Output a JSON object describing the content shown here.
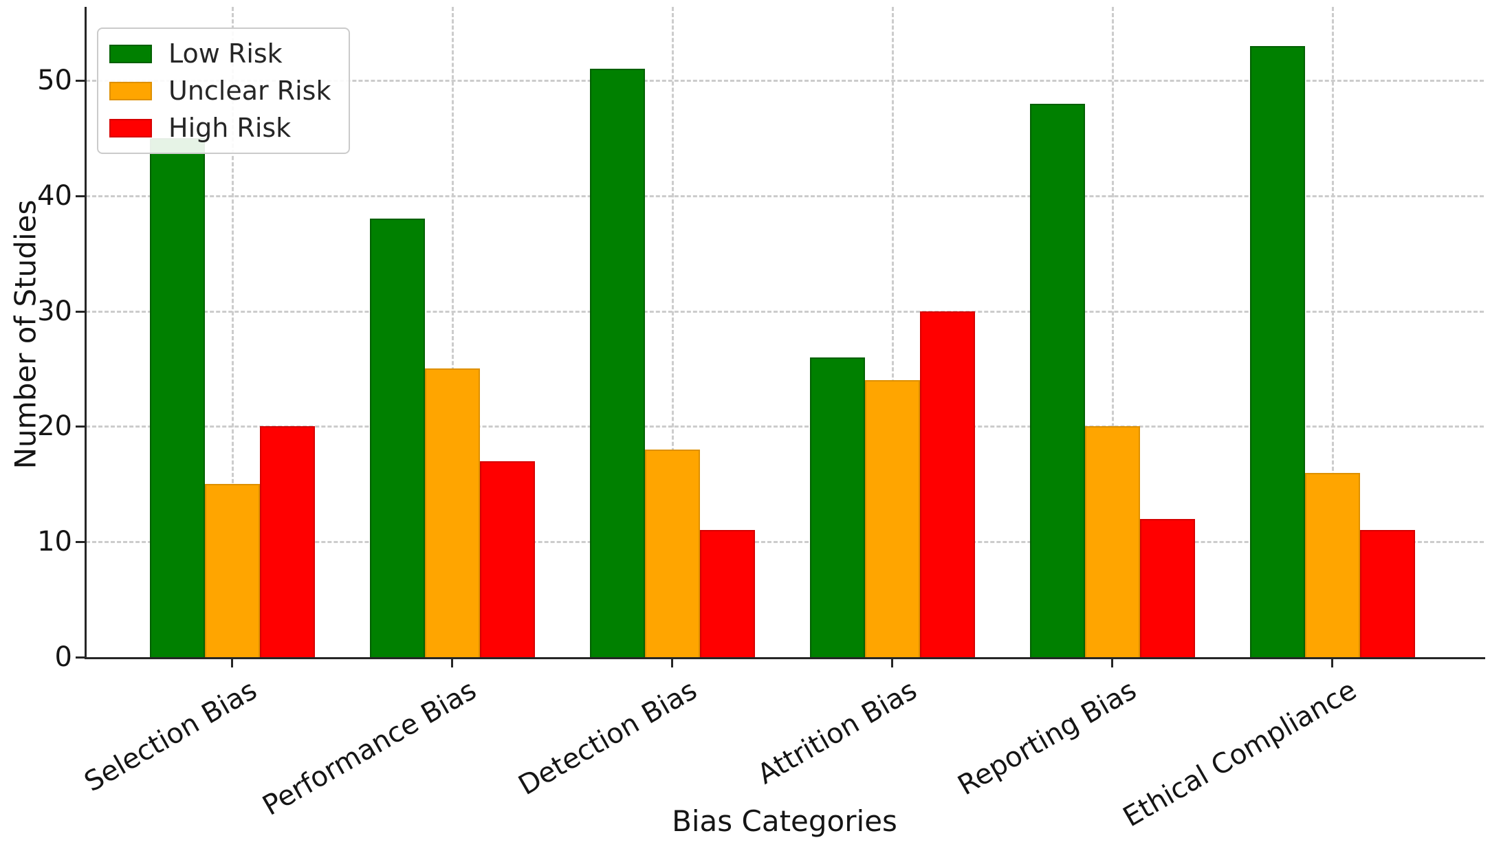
{
  "chart_data": {
    "type": "bar",
    "title": "",
    "xlabel": "Bias Categories",
    "ylabel": "Number of Studies",
    "categories": [
      "Selection Bias",
      "Performance Bias",
      "Detection Bias",
      "Attrition Bias",
      "Reporting Bias",
      "Ethical Compliance"
    ],
    "series": [
      {
        "name": "Low Risk",
        "color": "#008000",
        "edge_color": "#036003",
        "values": [
          45,
          38,
          51,
          26,
          48,
          53
        ]
      },
      {
        "name": "Unclear Risk",
        "color": "#FFA500",
        "edge_color": "#de9000",
        "values": [
          15,
          25,
          18,
          24,
          20,
          16
        ]
      },
      {
        "name": "High Risk",
        "color": "#FF0000",
        "edge_color": "#d60000",
        "values": [
          20,
          17,
          11,
          30,
          12,
          11
        ]
      }
    ],
    "yticks": [
      0,
      10,
      20,
      30,
      40,
      50
    ],
    "ylim": [
      0,
      56.4
    ],
    "grid": {
      "style": "dashed",
      "color": "#cccccc",
      "horizontal": true,
      "vertical": true
    },
    "legend_position": "upper-left"
  }
}
